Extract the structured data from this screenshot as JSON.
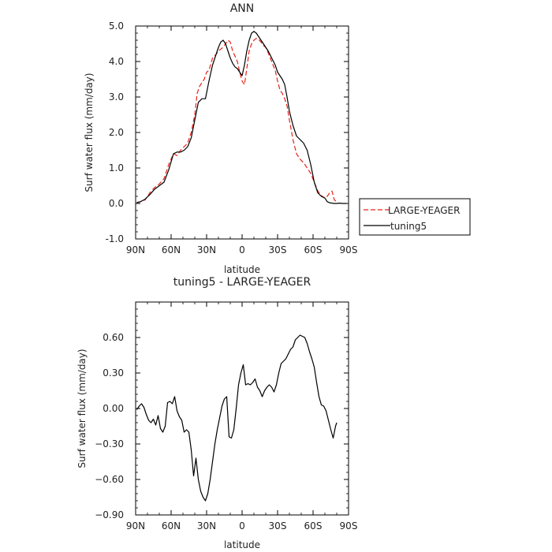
{
  "chart_data": [
    {
      "type": "line",
      "title": "ANN",
      "xlabel": "latitude",
      "ylabel": "Surf water flux (mm/day)",
      "xlim": [
        90,
        -90
      ],
      "ylim": [
        -1.0,
        5.0
      ],
      "x_ticks": [
        90,
        60,
        30,
        0,
        -30,
        -60,
        -90
      ],
      "x_tick_labels": [
        "90N",
        "60N",
        "30N",
        "0",
        "30S",
        "60S",
        "90S"
      ],
      "y_ticks": [
        -1.0,
        0.0,
        1.0,
        2.0,
        3.0,
        4.0,
        5.0
      ],
      "y_tick_labels": [
        "-1.0",
        "0.0",
        "1.0",
        "2.0",
        "3.0",
        "4.0",
        "5.0"
      ],
      "legend_position": "right-outside",
      "series": [
        {
          "name": "LARGE-YEAGER",
          "color": "#e8231c",
          "dash": "dashed",
          "x": [
            89,
            86,
            82,
            78,
            74,
            70,
            66,
            62,
            58,
            55,
            52,
            49,
            46,
            43,
            40,
            38,
            36,
            34,
            32,
            30,
            28,
            25,
            22,
            20,
            18,
            16,
            14,
            12,
            10,
            8,
            6,
            4,
            2,
            0,
            -2,
            -4,
            -6,
            -8,
            -10,
            -12,
            -14,
            -16,
            -18,
            -20,
            -22,
            -25,
            -28,
            -30,
            -32,
            -34,
            -36,
            -38,
            -40,
            -43,
            -46,
            -49,
            -52,
            -55,
            -58,
            -61,
            -64,
            -67,
            -70,
            -72,
            -74,
            -76,
            -78,
            -80
          ],
          "y": [
            0.03,
            0.05,
            0.1,
            0.3,
            0.45,
            0.55,
            0.7,
            1.1,
            1.4,
            1.35,
            1.5,
            1.6,
            1.7,
            2.0,
            2.5,
            3.1,
            3.3,
            3.4,
            3.5,
            3.7,
            3.75,
            4.1,
            4.2,
            4.3,
            4.35,
            4.4,
            4.5,
            4.6,
            4.55,
            4.3,
            4.15,
            4.0,
            3.7,
            3.45,
            3.35,
            3.8,
            4.3,
            4.5,
            4.6,
            4.65,
            4.62,
            4.55,
            4.45,
            4.4,
            4.25,
            4.0,
            3.75,
            3.45,
            3.2,
            3.1,
            2.95,
            2.75,
            2.35,
            1.8,
            1.4,
            1.25,
            1.15,
            1.0,
            0.85,
            0.6,
            0.35,
            0.22,
            0.15,
            0.2,
            0.3,
            0.35,
            0.1,
            0.05
          ]
        },
        {
          "name": "tuning5",
          "color": "#000000",
          "dash": "solid",
          "x": [
            89,
            86,
            82,
            78,
            74,
            70,
            66,
            62,
            58,
            55,
            52,
            49,
            46,
            43,
            40,
            37,
            34,
            31,
            28,
            25,
            22,
            20,
            18,
            16,
            14,
            12,
            10,
            8,
            6,
            4,
            2,
            0,
            -2,
            -4,
            -6,
            -8,
            -10,
            -12,
            -14,
            -16,
            -18,
            -20,
            -22,
            -25,
            -28,
            -30,
            -32,
            -34,
            -36,
            -38,
            -40,
            -43,
            -46,
            -49,
            -52,
            -55,
            -58,
            -61,
            -64,
            -67,
            -70,
            -72,
            -74,
            -76,
            -78,
            -80,
            -82,
            -85,
            -88
          ],
          "y": [
            0.02,
            0.05,
            0.12,
            0.25,
            0.4,
            0.5,
            0.6,
            0.95,
            1.4,
            1.45,
            1.45,
            1.5,
            1.6,
            1.85,
            2.35,
            2.85,
            2.95,
            2.95,
            3.45,
            3.9,
            4.2,
            4.4,
            4.55,
            4.6,
            4.5,
            4.3,
            4.1,
            3.95,
            3.85,
            3.8,
            3.7,
            3.6,
            3.9,
            4.3,
            4.6,
            4.8,
            4.85,
            4.8,
            4.7,
            4.6,
            4.5,
            4.4,
            4.3,
            4.1,
            3.9,
            3.7,
            3.6,
            3.5,
            3.35,
            3.0,
            2.6,
            2.2,
            1.9,
            1.8,
            1.7,
            1.5,
            1.1,
            0.6,
            0.3,
            0.2,
            0.15,
            0.05,
            0.02,
            0.01,
            0.0,
            0.0,
            0.01,
            0.0,
            0.0
          ]
        }
      ]
    },
    {
      "type": "line",
      "title": "tuning5 - LARGE-YEAGER",
      "xlabel": "latitude",
      "ylabel": "Surf water flux (mm/day)",
      "xlim": [
        90,
        -90
      ],
      "ylim": [
        -0.9,
        0.9
      ],
      "x_ticks": [
        90,
        60,
        30,
        0,
        -30,
        -60,
        -90
      ],
      "x_tick_labels": [
        "90N",
        "60N",
        "30N",
        "0",
        "30S",
        "60S",
        "90S"
      ],
      "y_ticks": [
        -0.9,
        -0.6,
        -0.3,
        0.0,
        0.3,
        0.6
      ],
      "y_tick_labels": [
        "−0.90",
        "−0.60",
        "−0.30",
        "0.00",
        "0.30",
        "0.60"
      ],
      "series": [
        {
          "color": "#000000",
          "dash": "solid",
          "x": [
            89,
            87,
            85,
            83,
            81,
            79,
            77,
            75,
            73,
            71,
            69,
            67,
            65,
            63,
            61,
            59,
            57,
            55,
            53,
            51,
            49,
            47,
            45,
            43,
            41,
            39,
            37,
            35,
            33,
            31,
            29,
            27,
            25,
            23,
            21,
            19,
            17,
            15,
            13,
            11,
            9,
            7,
            5,
            3,
            1,
            -1,
            -3,
            -5,
            -7,
            -9,
            -11,
            -13,
            -15,
            -17,
            -19,
            -21,
            -23,
            -25,
            -27,
            -29,
            -31,
            -33,
            -35,
            -37,
            -39,
            -41,
            -43,
            -45,
            -47,
            -49,
            -51,
            -53,
            -55,
            -57,
            -59,
            -61,
            -63,
            -65,
            -67,
            -69,
            -71,
            -73,
            -75,
            -77,
            -79,
            -80
          ],
          "y": [
            -0.01,
            0.02,
            0.04,
            0.01,
            -0.05,
            -0.1,
            -0.12,
            -0.09,
            -0.14,
            -0.06,
            -0.17,
            -0.2,
            -0.15,
            0.05,
            0.06,
            0.04,
            0.1,
            -0.02,
            -0.07,
            -0.1,
            -0.2,
            -0.18,
            -0.2,
            -0.35,
            -0.57,
            -0.42,
            -0.6,
            -0.7,
            -0.75,
            -0.78,
            -0.72,
            -0.6,
            -0.45,
            -0.3,
            -0.18,
            -0.08,
            0.02,
            0.08,
            0.1,
            -0.24,
            -0.25,
            -0.18,
            0.0,
            0.2,
            0.3,
            0.37,
            0.2,
            0.21,
            0.2,
            0.22,
            0.25,
            0.18,
            0.15,
            0.1,
            0.15,
            0.18,
            0.2,
            0.18,
            0.14,
            0.2,
            0.3,
            0.38,
            0.4,
            0.42,
            0.46,
            0.5,
            0.52,
            0.58,
            0.6,
            0.62,
            0.61,
            0.6,
            0.55,
            0.48,
            0.42,
            0.35,
            0.22,
            0.1,
            0.03,
            0.02,
            -0.02,
            -0.1,
            -0.18,
            -0.25,
            -0.15,
            -0.12
          ]
        }
      ]
    }
  ]
}
